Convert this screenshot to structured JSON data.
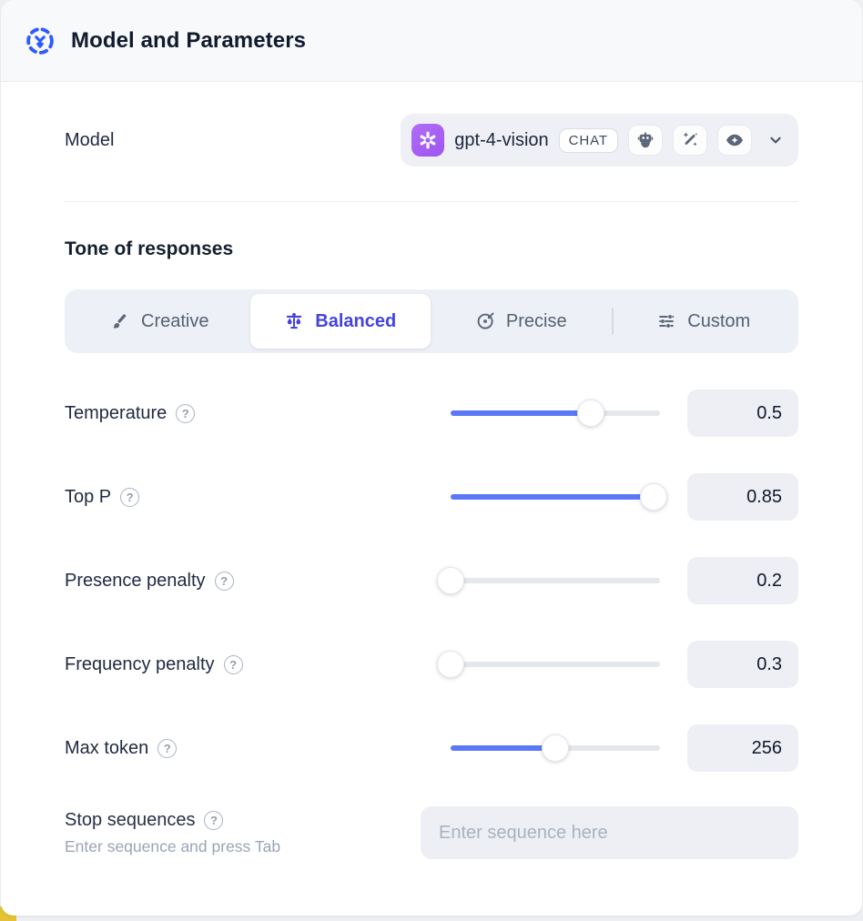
{
  "header": {
    "title": "Model and Parameters"
  },
  "model_row": {
    "label": "Model",
    "model_name": "gpt-4-vision",
    "type_badge": "CHAT",
    "capability_icons": [
      "robot-icon",
      "wand-sparkles-icon",
      "vision-eye-icon"
    ]
  },
  "tone": {
    "heading": "Tone of responses",
    "tabs": [
      {
        "label": "Creative",
        "icon": "paintbrush-icon",
        "active": false
      },
      {
        "label": "Balanced",
        "icon": "balance-scale-icon",
        "active": true
      },
      {
        "label": "Precise",
        "icon": "target-icon",
        "active": false
      },
      {
        "label": "Custom",
        "icon": "sliders-icon",
        "active": false
      }
    ]
  },
  "parameters": [
    {
      "label": "Temperature",
      "value": "0.5",
      "fill_pct": 67
    },
    {
      "label": "Top P",
      "value": "0.85",
      "fill_pct": 97
    },
    {
      "label": "Presence penalty",
      "value": "0.2",
      "fill_pct": 0
    },
    {
      "label": "Frequency penalty",
      "value": "0.3",
      "fill_pct": 0
    },
    {
      "label": "Max token",
      "value": "256",
      "fill_pct": 50
    }
  ],
  "stop_sequences": {
    "label": "Stop sequences",
    "hint": "Enter sequence and press Tab",
    "placeholder": "Enter sequence here"
  },
  "colors": {
    "accent_slider": "#5b79f7",
    "active_tab_text": "#4442e0",
    "header_icon_blue": "#2e5bff",
    "model_logo_purple": "#a361f1",
    "corner_yellow": "#e3c233"
  }
}
